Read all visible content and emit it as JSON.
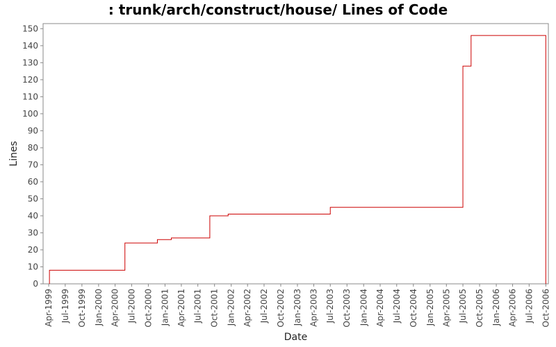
{
  "chart_data": {
    "type": "line",
    "step": true,
    "title": ": trunk/arch/construct/house/ Lines of Code",
    "xlabel": "Date",
    "ylabel": "Lines",
    "ylim": [
      0,
      153
    ],
    "xlim": [
      "1999-03-01",
      "2006-10-15"
    ],
    "yticks": [
      0,
      10,
      20,
      30,
      40,
      50,
      60,
      70,
      80,
      90,
      100,
      110,
      120,
      130,
      140,
      150
    ],
    "xticks": [
      {
        "date": "1999-04-01",
        "label": "Apr-1999"
      },
      {
        "date": "1999-07-01",
        "label": "Jul-1999"
      },
      {
        "date": "1999-10-01",
        "label": "Oct-1999"
      },
      {
        "date": "2000-01-01",
        "label": "Jan-2000"
      },
      {
        "date": "2000-04-01",
        "label": "Apr-2000"
      },
      {
        "date": "2000-07-01",
        "label": "Jul-2000"
      },
      {
        "date": "2000-10-01",
        "label": "Oct-2000"
      },
      {
        "date": "2001-01-01",
        "label": "Jan-2001"
      },
      {
        "date": "2001-04-01",
        "label": "Apr-2001"
      },
      {
        "date": "2001-07-01",
        "label": "Jul-2001"
      },
      {
        "date": "2001-10-01",
        "label": "Oct-2001"
      },
      {
        "date": "2002-01-01",
        "label": "Jan-2002"
      },
      {
        "date": "2002-04-01",
        "label": "Apr-2002"
      },
      {
        "date": "2002-07-01",
        "label": "Jul-2002"
      },
      {
        "date": "2002-10-01",
        "label": "Oct-2002"
      },
      {
        "date": "2003-01-01",
        "label": "Jan-2003"
      },
      {
        "date": "2003-04-01",
        "label": "Apr-2003"
      },
      {
        "date": "2003-07-01",
        "label": "Jul-2003"
      },
      {
        "date": "2003-10-01",
        "label": "Oct-2003"
      },
      {
        "date": "2004-01-01",
        "label": "Jan-2004"
      },
      {
        "date": "2004-04-01",
        "label": "Apr-2004"
      },
      {
        "date": "2004-07-01",
        "label": "Jul-2004"
      },
      {
        "date": "2004-10-01",
        "label": "Oct-2004"
      },
      {
        "date": "2005-01-01",
        "label": "Jan-2005"
      },
      {
        "date": "2005-04-01",
        "label": "Apr-2005"
      },
      {
        "date": "2005-07-01",
        "label": "Jul-2005"
      },
      {
        "date": "2005-10-01",
        "label": "Oct-2005"
      },
      {
        "date": "2006-01-01",
        "label": "Jan-2006"
      },
      {
        "date": "2006-04-01",
        "label": "Apr-2006"
      },
      {
        "date": "2006-07-01",
        "label": "Jul-2006"
      },
      {
        "date": "2006-10-01",
        "label": "Oct-2006"
      }
    ],
    "series": [
      {
        "color": "#cc0000",
        "points": [
          {
            "x": "1999-04-05",
            "y": 0
          },
          {
            "x": "1999-04-05",
            "y": 8
          },
          {
            "x": "2000-05-25",
            "y": 24
          },
          {
            "x": "2000-11-20",
            "y": 26
          },
          {
            "x": "2001-02-05",
            "y": 27
          },
          {
            "x": "2001-09-05",
            "y": 40
          },
          {
            "x": "2001-12-15",
            "y": 41
          },
          {
            "x": "2003-07-01",
            "y": 45
          },
          {
            "x": "2005-07-01",
            "y": 128
          },
          {
            "x": "2005-08-15",
            "y": 146
          },
          {
            "x": "2006-10-01",
            "y": 146
          },
          {
            "x": "2006-10-01",
            "y": 0
          }
        ]
      }
    ]
  }
}
